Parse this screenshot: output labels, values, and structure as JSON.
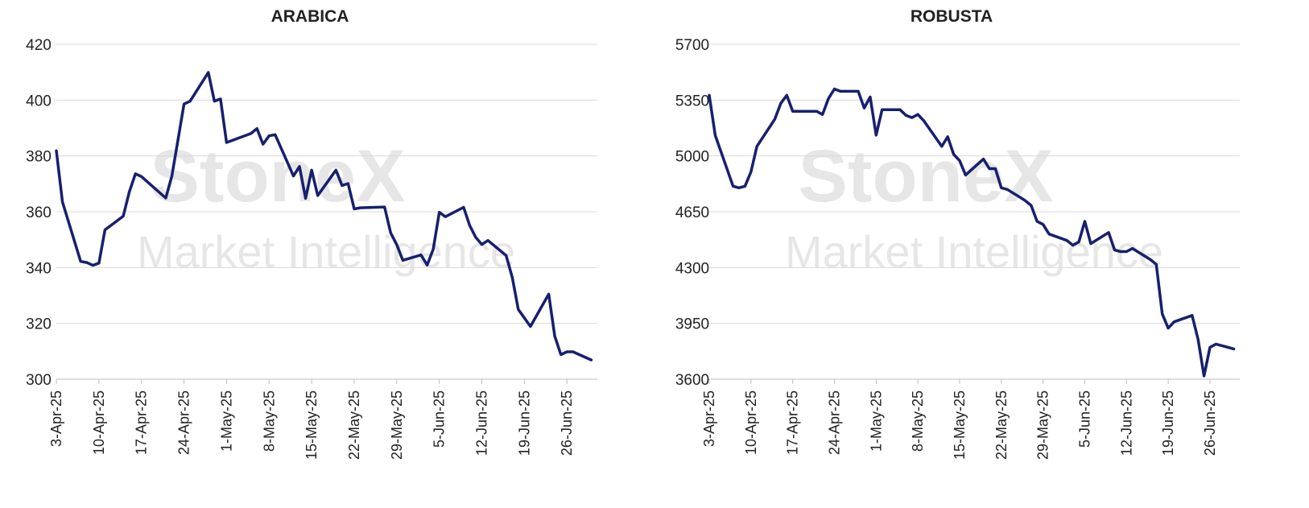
{
  "watermark": {
    "line1": "StoneX",
    "line2": "Market Intelligence"
  },
  "colors": {
    "line": "#16206e",
    "grid": "#d9d9d9",
    "axis_text": "#222222",
    "title": "#222222",
    "watermark": "#c8c8c8"
  },
  "chart_data": [
    {
      "type": "line",
      "title": "ARABICA",
      "xlabel": "",
      "ylabel": "",
      "ylim": [
        300,
        420
      ],
      "yticks": [
        300,
        320,
        340,
        360,
        380,
        400,
        420
      ],
      "xlim": [
        "2025-04-03",
        "2025-07-01"
      ],
      "xticks": [
        {
          "date": "2025-04-03",
          "label": "3-Apr-25"
        },
        {
          "date": "2025-04-10",
          "label": "10-Apr-25"
        },
        {
          "date": "2025-04-17",
          "label": "17-Apr-25"
        },
        {
          "date": "2025-04-24",
          "label": "24-Apr-25"
        },
        {
          "date": "2025-05-01",
          "label": "1-May-25"
        },
        {
          "date": "2025-05-08",
          "label": "8-May-25"
        },
        {
          "date": "2025-05-15",
          "label": "15-May-25"
        },
        {
          "date": "2025-05-22",
          "label": "22-May-25"
        },
        {
          "date": "2025-05-29",
          "label": "29-May-25"
        },
        {
          "date": "2025-06-05",
          "label": "5-Jun-25"
        },
        {
          "date": "2025-06-12",
          "label": "12-Jun-25"
        },
        {
          "date": "2025-06-19",
          "label": "19-Jun-25"
        },
        {
          "date": "2025-06-26",
          "label": "26-Jun-25"
        }
      ],
      "grid": "horizontal",
      "legend": "none",
      "series": [
        {
          "x": [
            "2025-04-03",
            "2025-04-04",
            "2025-04-07",
            "2025-04-08",
            "2025-04-09",
            "2025-04-10",
            "2025-04-11",
            "2025-04-14",
            "2025-04-15",
            "2025-04-16",
            "2025-04-17",
            "2025-04-21",
            "2025-04-22",
            "2025-04-23",
            "2025-04-24",
            "2025-04-25",
            "2025-04-28",
            "2025-04-29",
            "2025-04-30",
            "2025-05-01",
            "2025-05-05",
            "2025-05-06",
            "2025-05-07",
            "2025-05-08",
            "2025-05-09",
            "2025-05-12",
            "2025-05-13",
            "2025-05-14",
            "2025-05-15",
            "2025-05-16",
            "2025-05-19",
            "2025-05-20",
            "2025-05-21",
            "2025-05-22",
            "2025-05-23",
            "2025-05-27",
            "2025-05-28",
            "2025-05-29",
            "2025-05-30",
            "2025-06-02",
            "2025-06-03",
            "2025-06-04",
            "2025-06-05",
            "2025-06-06",
            "2025-06-09",
            "2025-06-10",
            "2025-06-11",
            "2025-06-12",
            "2025-06-13",
            "2025-06-16",
            "2025-06-17",
            "2025-06-18",
            "2025-06-20",
            "2025-06-23",
            "2025-06-24",
            "2025-06-25",
            "2025-06-26",
            "2025-06-27",
            "2025-06-30"
          ],
          "values": [
            381.8,
            363.5,
            342.2,
            341.8,
            340.8,
            341.6,
            353.5,
            358.4,
            367.1,
            373.6,
            372.6,
            364.9,
            372.8,
            385.6,
            398.6,
            399.6,
            409.9,
            399.6,
            400.4,
            384.8,
            388.0,
            389.8,
            384.2,
            387.2,
            387.6,
            372.8,
            376.2,
            364.8,
            374.9,
            365.8,
            374.9,
            369.4,
            370.1,
            361.0,
            361.4,
            361.7,
            352.4,
            348.2,
            342.6,
            344.5,
            340.9,
            346.5,
            359.8,
            358.2,
            361.6,
            355.1,
            350.8,
            348.3,
            349.7,
            344.3,
            336.5,
            325.0,
            318.9,
            330.5,
            315.4,
            308.8,
            309.8,
            309.8,
            306.9
          ]
        }
      ]
    },
    {
      "type": "line",
      "title": "ROBUSTA",
      "xlabel": "",
      "ylabel": "",
      "ylim": [
        3600,
        5700
      ],
      "yticks": [
        3600,
        3950,
        4300,
        4650,
        5000,
        5350,
        5700
      ],
      "xlim": [
        "2025-04-03",
        "2025-07-01"
      ],
      "xticks": [
        {
          "date": "2025-04-03",
          "label": "3-Apr-25"
        },
        {
          "date": "2025-04-10",
          "label": "10-Apr-25"
        },
        {
          "date": "2025-04-17",
          "label": "17-Apr-25"
        },
        {
          "date": "2025-04-24",
          "label": "24-Apr-25"
        },
        {
          "date": "2025-05-01",
          "label": "1-May-25"
        },
        {
          "date": "2025-05-08",
          "label": "8-May-25"
        },
        {
          "date": "2025-05-15",
          "label": "15-May-25"
        },
        {
          "date": "2025-05-22",
          "label": "22-May-25"
        },
        {
          "date": "2025-05-29",
          "label": "29-May-25"
        },
        {
          "date": "2025-06-05",
          "label": "5-Jun-25"
        },
        {
          "date": "2025-06-12",
          "label": "12-Jun-25"
        },
        {
          "date": "2025-06-19",
          "label": "19-Jun-25"
        },
        {
          "date": "2025-06-26",
          "label": "26-Jun-25"
        }
      ],
      "grid": "horizontal",
      "legend": "none",
      "series": [
        {
          "x": [
            "2025-04-03",
            "2025-04-04",
            "2025-04-07",
            "2025-04-08",
            "2025-04-09",
            "2025-04-10",
            "2025-04-11",
            "2025-04-14",
            "2025-04-15",
            "2025-04-16",
            "2025-04-17",
            "2025-04-21",
            "2025-04-22",
            "2025-04-23",
            "2025-04-24",
            "2025-04-25",
            "2025-04-28",
            "2025-04-29",
            "2025-04-30",
            "2025-05-01",
            "2025-05-02",
            "2025-05-05",
            "2025-05-06",
            "2025-05-07",
            "2025-05-08",
            "2025-05-09",
            "2025-05-12",
            "2025-05-13",
            "2025-05-14",
            "2025-05-15",
            "2025-05-16",
            "2025-05-19",
            "2025-05-20",
            "2025-05-21",
            "2025-05-22",
            "2025-05-23",
            "2025-05-26",
            "2025-05-27",
            "2025-05-28",
            "2025-05-29",
            "2025-05-30",
            "2025-06-02",
            "2025-06-03",
            "2025-06-04",
            "2025-06-05",
            "2025-06-06",
            "2025-06-09",
            "2025-06-10",
            "2025-06-11",
            "2025-06-12",
            "2025-06-13",
            "2025-06-16",
            "2025-06-17",
            "2025-06-18",
            "2025-06-19",
            "2025-06-20",
            "2025-06-23",
            "2025-06-24",
            "2025-06-25",
            "2025-06-26",
            "2025-06-27",
            "2025-06-30"
          ],
          "values": [
            5380,
            5130,
            4810,
            4800,
            4810,
            4900,
            5060,
            5230,
            5330,
            5380,
            5280,
            5280,
            5260,
            5360,
            5420,
            5405,
            5405,
            5300,
            5370,
            5130,
            5290,
            5290,
            5255,
            5240,
            5260,
            5220,
            5060,
            5120,
            5010,
            4970,
            4880,
            4980,
            4920,
            4920,
            4800,
            4790,
            4720,
            4690,
            4590,
            4570,
            4510,
            4470,
            4440,
            4460,
            4590,
            4450,
            4520,
            4410,
            4400,
            4400,
            4420,
            4350,
            4320,
            4010,
            3920,
            3960,
            4000,
            3850,
            3620,
            3800,
            3820,
            3790
          ]
        }
      ]
    }
  ]
}
